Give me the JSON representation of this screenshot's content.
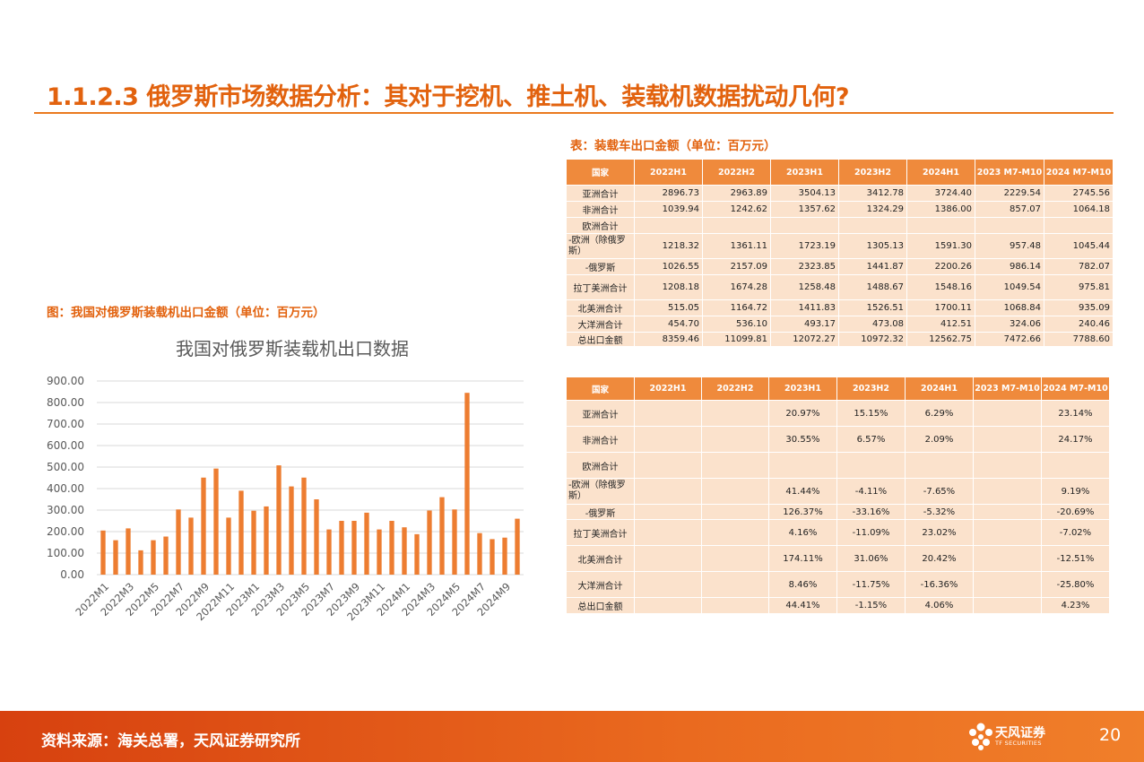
{
  "header": {
    "title": "1.1.2.3 俄罗斯市场数据分析：其对于挖机、推土机、装载机数据扰动几何?"
  },
  "table1": {
    "caption": "表：装载车出口金额（单位：百万元）",
    "headers": [
      "国家",
      "2022H1",
      "2022H2",
      "2023H1",
      "2023H2",
      "2024H1",
      "2023 M7-M10",
      "2024 M7-M10"
    ],
    "rows": [
      {
        "label": "亚洲合计",
        "values": [
          "2896.73",
          "2963.89",
          "3504.13",
          "3412.78",
          "3724.40",
          "2229.54",
          "2745.56"
        ]
      },
      {
        "label": "非洲合计",
        "values": [
          "1039.94",
          "1242.62",
          "1357.62",
          "1324.29",
          "1386.00",
          "857.07",
          "1064.18"
        ]
      },
      {
        "label": "欧洲合计",
        "values": [
          "",
          "",
          "",
          "",
          "",
          "",
          ""
        ]
      },
      {
        "label": "-欧洲（除俄罗斯）",
        "values": [
          "1218.32",
          "1361.11",
          "1723.19",
          "1305.13",
          "1591.30",
          "957.48",
          "1045.44"
        ]
      },
      {
        "label": "-俄罗斯",
        "values": [
          "1026.55",
          "2157.09",
          "2323.85",
          "1441.87",
          "2200.26",
          "986.14",
          "782.07"
        ]
      },
      {
        "label": "拉丁美洲合计",
        "values": [
          "1208.18",
          "1674.28",
          "1258.48",
          "1488.67",
          "1548.16",
          "1049.54",
          "975.81"
        ]
      },
      {
        "label": "北美洲合计",
        "values": [
          "515.05",
          "1164.72",
          "1411.83",
          "1526.51",
          "1700.11",
          "1068.84",
          "935.09"
        ]
      },
      {
        "label": "大洋洲合计",
        "values": [
          "454.70",
          "536.10",
          "493.17",
          "473.08",
          "412.51",
          "324.06",
          "240.46"
        ]
      },
      {
        "label": "总出口金额",
        "values": [
          "8359.46",
          "11099.81",
          "12072.27",
          "10972.32",
          "12562.75",
          "7472.66",
          "7788.60"
        ]
      }
    ]
  },
  "table2": {
    "headers": [
      "国家",
      "2022H1",
      "2022H2",
      "2023H1",
      "2023H2",
      "2024H1",
      "2023 M7-M10",
      "2024 M7-M10"
    ],
    "rows": [
      {
        "label": "亚洲合计",
        "values": [
          "",
          "",
          "20.97%",
          "15.15%",
          "6.29%",
          "",
          "23.14%"
        ]
      },
      {
        "label": "非洲合计",
        "values": [
          "",
          "",
          "30.55%",
          "6.57%",
          "2.09%",
          "",
          "24.17%"
        ]
      },
      {
        "label": "欧洲合计",
        "values": [
          "",
          "",
          "",
          "",
          "",
          "",
          ""
        ]
      },
      {
        "label": "-欧洲（除俄罗斯）",
        "values": [
          "",
          "",
          "41.44%",
          "-4.11%",
          "-7.65%",
          "",
          "9.19%"
        ]
      },
      {
        "label": "-俄罗斯",
        "values": [
          "",
          "",
          "126.37%",
          "-33.16%",
          "-5.32%",
          "",
          "-20.69%"
        ]
      },
      {
        "label": "拉丁美洲合计",
        "values": [
          "",
          "",
          "4.16%",
          "-11.09%",
          "23.02%",
          "",
          "-7.02%"
        ]
      },
      {
        "label": "北美洲合计",
        "values": [
          "",
          "",
          "174.11%",
          "31.06%",
          "20.42%",
          "",
          "-12.51%"
        ]
      },
      {
        "label": "大洋洲合计",
        "values": [
          "",
          "",
          "8.46%",
          "-11.75%",
          "-16.36%",
          "",
          "-25.80%"
        ]
      },
      {
        "label": "总出口金额",
        "values": [
          "",
          "",
          "44.41%",
          "-1.15%",
          "4.06%",
          "",
          "4.23%"
        ]
      }
    ]
  },
  "figure": {
    "caption": "图：我国对俄罗斯装载机出口金额（单位：百万元）"
  },
  "chart_data": {
    "type": "bar",
    "title": "我国对俄罗斯装载机出口数据",
    "color": "#ed7d31",
    "ylim": [
      0,
      900
    ],
    "yticks": [
      "0.00",
      "100.00",
      "200.00",
      "300.00",
      "400.00",
      "500.00",
      "600.00",
      "700.00",
      "800.00",
      "900.00"
    ],
    "grid": true,
    "categories": [
      "2022M1",
      "2022M2",
      "2022M3",
      "2022M4",
      "2022M5",
      "2022M6",
      "2022M7",
      "2022M8",
      "2022M9",
      "2022M10",
      "2022M11",
      "2022M12",
      "2023M1",
      "2023M2",
      "2023M3",
      "2023M4",
      "2023M5",
      "2023M6",
      "2023M7",
      "2023M8",
      "2023M9",
      "2023M10",
      "2023M11",
      "2023M12",
      "2024M1",
      "2024M2",
      "2024M3",
      "2024M4",
      "2024M5",
      "2024M6",
      "2024M7",
      "2024M8",
      "2024M9",
      "2024M10"
    ],
    "shown_labels": [
      "2022M1",
      "2022M3",
      "2022M5",
      "2022M7",
      "2022M9",
      "2022M11",
      "2023M1",
      "2023M3",
      "2023M5",
      "2023M7",
      "2023M9",
      "2023M11",
      "2024M1",
      "2024M3",
      "2024M5",
      "2024M7",
      "2024M9"
    ],
    "values": [
      205,
      160,
      215,
      113,
      160,
      177,
      303,
      265,
      451,
      493,
      265,
      390,
      297,
      317,
      508,
      410,
      451,
      350,
      210,
      250,
      250,
      288,
      210,
      250,
      220,
      188,
      298,
      360,
      303,
      845,
      193,
      165,
      172,
      260
    ]
  },
  "footer": {
    "source": "资料来源：海关总署，天风证券研究所",
    "brand": "天风证券",
    "brand_en": "TF SECURITIES",
    "page": "20"
  }
}
